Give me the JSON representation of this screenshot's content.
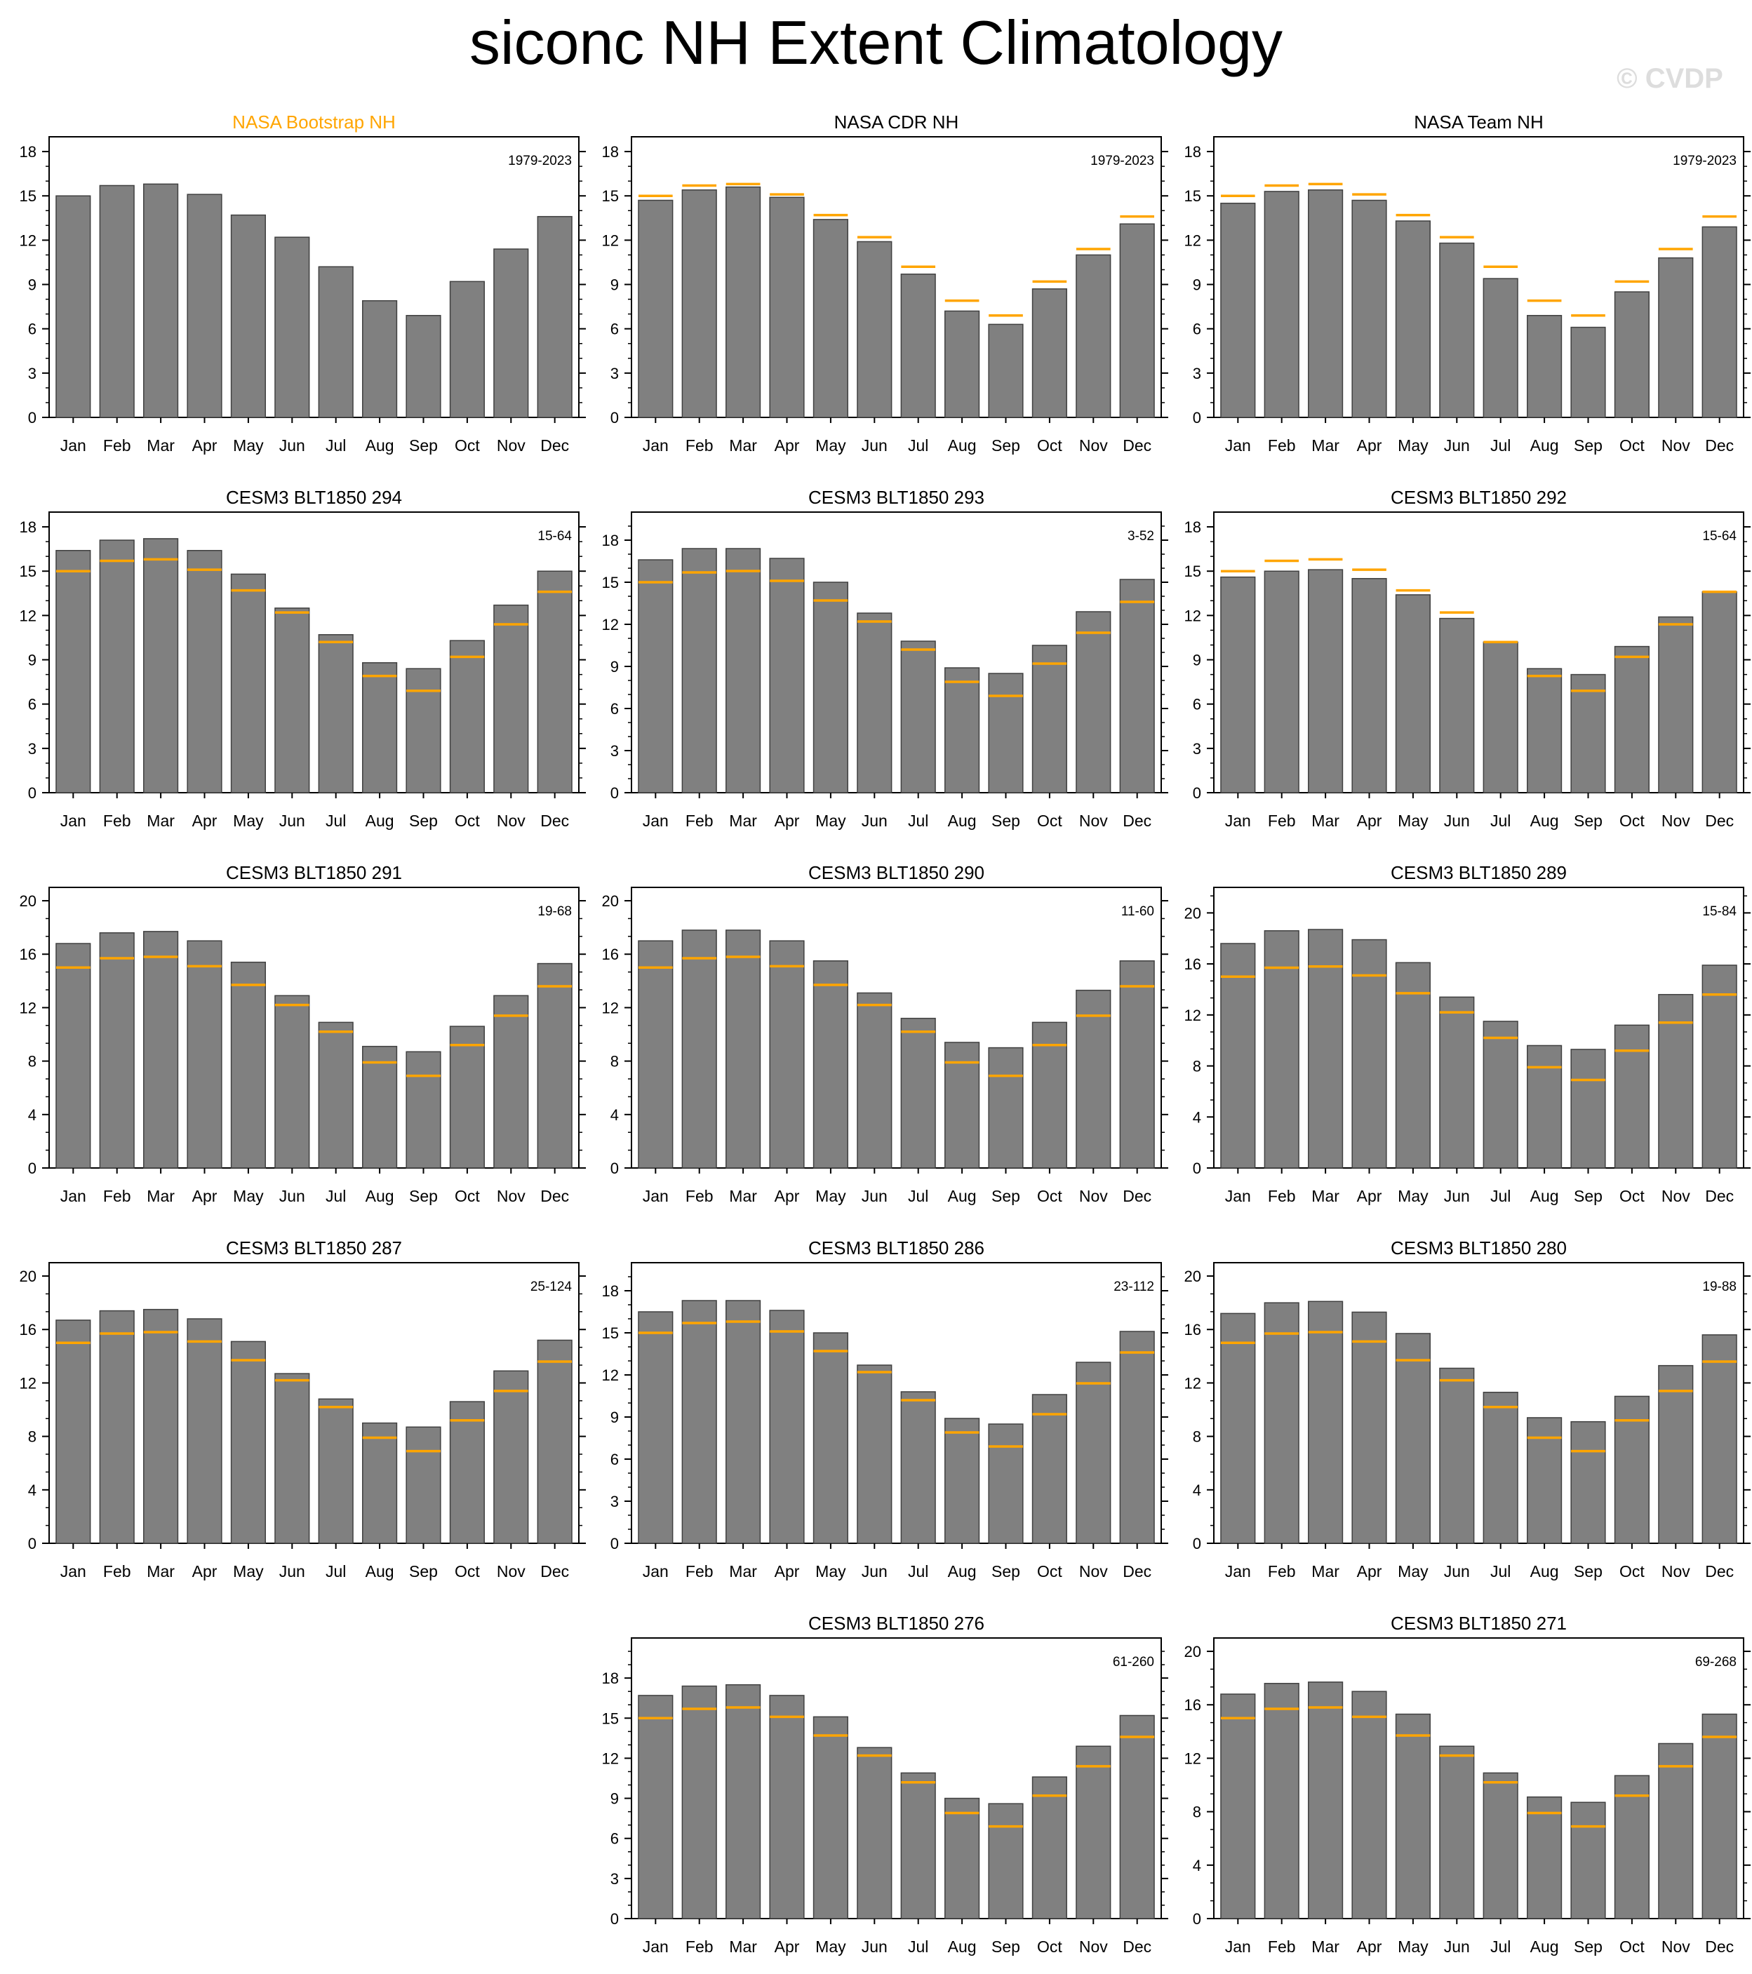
{
  "page": {
    "title": "siconc NH Extent Climatology",
    "watermark": "© CVDP",
    "colors": {
      "bar": "#808080",
      "bar_edge": "#404040",
      "reference": "#ffa500",
      "reference_title": "#ffa500"
    },
    "months": [
      "Jan",
      "Feb",
      "Mar",
      "Apr",
      "May",
      "Jun",
      "Jul",
      "Aug",
      "Sep",
      "Oct",
      "Nov",
      "Dec"
    ]
  },
  "reference": [
    15.0,
    15.7,
    15.8,
    15.1,
    13.7,
    12.2,
    10.2,
    7.9,
    6.9,
    9.2,
    11.4,
    13.6
  ],
  "chart_data": [
    {
      "type": "bar",
      "title": "NASA Bootstrap NH",
      "period": "1979-2023",
      "ylim": [
        0,
        19
      ],
      "yticks": [
        0,
        3,
        6,
        9,
        12,
        15,
        18
      ],
      "values": [
        15.0,
        15.7,
        15.8,
        15.1,
        13.7,
        12.2,
        10.2,
        7.9,
        6.9,
        9.2,
        11.4,
        13.6
      ],
      "show_reference": false,
      "title_is_reference": true
    },
    {
      "type": "bar",
      "title": "NASA CDR NH",
      "period": "1979-2023",
      "ylim": [
        0,
        19
      ],
      "yticks": [
        0,
        3,
        6,
        9,
        12,
        15,
        18
      ],
      "values": [
        14.7,
        15.4,
        15.6,
        14.9,
        13.4,
        11.9,
        9.7,
        7.2,
        6.3,
        8.7,
        11.0,
        13.1
      ],
      "show_reference": true
    },
    {
      "type": "bar",
      "title": "NASA Team NH",
      "period": "1979-2023",
      "ylim": [
        0,
        19
      ],
      "yticks": [
        0,
        3,
        6,
        9,
        12,
        15,
        18
      ],
      "values": [
        14.5,
        15.3,
        15.4,
        14.7,
        13.3,
        11.8,
        9.4,
        6.9,
        6.1,
        8.5,
        10.8,
        12.9
      ],
      "show_reference": true
    },
    {
      "type": "bar",
      "title": "CESM3 BLT1850 294",
      "period": "15-64",
      "ylim": [
        0,
        19
      ],
      "yticks": [
        0,
        3,
        6,
        9,
        12,
        15,
        18
      ],
      "values": [
        16.4,
        17.1,
        17.2,
        16.4,
        14.8,
        12.5,
        10.7,
        8.8,
        8.4,
        10.3,
        12.7,
        15.0
      ],
      "show_reference": true
    },
    {
      "type": "bar",
      "title": "CESM3 BLT1850 293",
      "period": "3-52",
      "ylim": [
        0,
        20
      ],
      "yticks": [
        0,
        3,
        6,
        9,
        12,
        15,
        18
      ],
      "values": [
        16.6,
        17.4,
        17.4,
        16.7,
        15.0,
        12.8,
        10.8,
        8.9,
        8.5,
        10.5,
        12.9,
        15.2
      ],
      "show_reference": true
    },
    {
      "type": "bar",
      "title": "CESM3 BLT1850 292",
      "period": "15-64",
      "ylim": [
        0,
        19
      ],
      "yticks": [
        0,
        3,
        6,
        9,
        12,
        15,
        18
      ],
      "values": [
        14.6,
        15.0,
        15.1,
        14.5,
        13.4,
        11.8,
        10.2,
        8.4,
        8.0,
        9.9,
        11.9,
        13.6
      ],
      "show_reference": true
    },
    {
      "type": "bar",
      "title": "CESM3 BLT1850 291",
      "period": "19-68",
      "ylim": [
        0,
        21
      ],
      "yticks": [
        0,
        4,
        8,
        12,
        16,
        20
      ],
      "values": [
        16.8,
        17.6,
        17.7,
        17.0,
        15.4,
        12.9,
        10.9,
        9.1,
        8.7,
        10.6,
        12.9,
        15.3
      ],
      "show_reference": true
    },
    {
      "type": "bar",
      "title": "CESM3 BLT1850 290",
      "period": "11-60",
      "ylim": [
        0,
        21
      ],
      "yticks": [
        0,
        4,
        8,
        12,
        16,
        20
      ],
      "values": [
        17.0,
        17.8,
        17.8,
        17.0,
        15.5,
        13.1,
        11.2,
        9.4,
        9.0,
        10.9,
        13.3,
        15.5
      ],
      "show_reference": true
    },
    {
      "type": "bar",
      "title": "CESM3 BLT1850 289",
      "period": "15-84",
      "ylim": [
        0,
        22
      ],
      "yticks": [
        0,
        4,
        8,
        12,
        16,
        20
      ],
      "values": [
        17.6,
        18.6,
        18.7,
        17.9,
        16.1,
        13.4,
        11.5,
        9.6,
        9.3,
        11.2,
        13.6,
        15.9
      ],
      "show_reference": true
    },
    {
      "type": "bar",
      "title": "CESM3 BLT1850 287",
      "period": "25-124",
      "ylim": [
        0,
        21
      ],
      "yticks": [
        0,
        4,
        8,
        12,
        16,
        20
      ],
      "values": [
        16.7,
        17.4,
        17.5,
        16.8,
        15.1,
        12.7,
        10.8,
        9.0,
        8.7,
        10.6,
        12.9,
        15.2
      ],
      "show_reference": true
    },
    {
      "type": "bar",
      "title": "CESM3 BLT1850 286",
      "period": "23-112",
      "ylim": [
        0,
        20
      ],
      "yticks": [
        0,
        3,
        6,
        9,
        12,
        15,
        18
      ],
      "values": [
        16.5,
        17.3,
        17.3,
        16.6,
        15.0,
        12.7,
        10.8,
        8.9,
        8.5,
        10.6,
        12.9,
        15.1
      ],
      "show_reference": true
    },
    {
      "type": "bar",
      "title": "CESM3 BLT1850 280",
      "period": "19-88",
      "ylim": [
        0,
        21
      ],
      "yticks": [
        0,
        4,
        8,
        12,
        16,
        20
      ],
      "values": [
        17.2,
        18.0,
        18.1,
        17.3,
        15.7,
        13.1,
        11.3,
        9.4,
        9.1,
        11.0,
        13.3,
        15.6
      ],
      "show_reference": true
    },
    {
      "type": "bar",
      "title": "CESM3 BLT1850 276",
      "period": "61-260",
      "ylim": [
        0,
        21
      ],
      "yticks": [
        0,
        3,
        6,
        9,
        12,
        15,
        18
      ],
      "values": [
        16.7,
        17.4,
        17.5,
        16.7,
        15.1,
        12.8,
        10.9,
        9.0,
        8.6,
        10.6,
        12.9,
        15.2
      ],
      "show_reference": true
    },
    {
      "type": "bar",
      "title": "CESM3 BLT1850 271",
      "period": "69-268",
      "ylim": [
        0,
        21
      ],
      "yticks": [
        0,
        4,
        8,
        12,
        16,
        20
      ],
      "values": [
        16.8,
        17.6,
        17.7,
        17.0,
        15.3,
        12.9,
        10.9,
        9.1,
        8.7,
        10.7,
        13.1,
        15.3
      ],
      "show_reference": true
    }
  ]
}
